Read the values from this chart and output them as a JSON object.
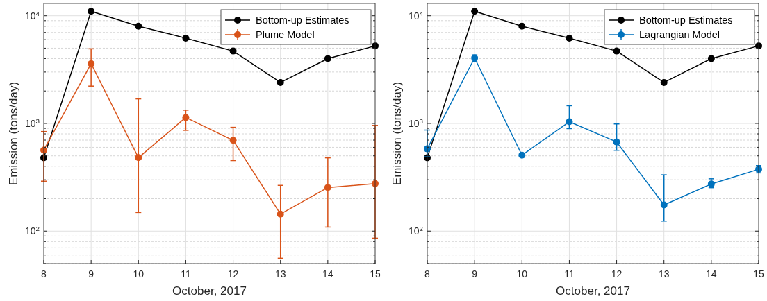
{
  "chart_data": [
    {
      "type": "line",
      "xlabel": "October, 2017",
      "ylabel": "Emission (tons/day)",
      "x": [
        8,
        9,
        10,
        11,
        12,
        13,
        14,
        15
      ],
      "xlim": [
        8,
        15
      ],
      "xticks": [
        8,
        9,
        10,
        11,
        12,
        13,
        14,
        15
      ],
      "ylim": [
        50,
        13000
      ],
      "log": true,
      "grid": true,
      "legend": "top right",
      "marker": "circle",
      "line_style": "solid",
      "yticks": [
        {
          "value": 50,
          "label": null
        },
        {
          "value": 60,
          "label": null
        },
        {
          "value": 70,
          "label": null
        },
        {
          "value": 80,
          "label": null
        },
        {
          "value": 90,
          "label": null
        },
        {
          "value": 100,
          "label": "10$^{2}$"
        },
        {
          "value": 200,
          "label": null
        },
        {
          "value": 300,
          "label": null
        },
        {
          "value": 400,
          "label": null
        },
        {
          "value": 500,
          "label": null
        },
        {
          "value": 600,
          "label": null
        },
        {
          "value": 700,
          "label": null
        },
        {
          "value": 800,
          "label": null
        },
        {
          "value": 900,
          "label": null
        },
        {
          "value": 1000,
          "label": "10$^{3}$"
        },
        {
          "value": 2000,
          "label": null
        },
        {
          "value": 3000,
          "label": null
        },
        {
          "value": 4000,
          "label": null
        },
        {
          "value": 5000,
          "label": null
        },
        {
          "value": 6000,
          "label": null
        },
        {
          "value": 7000,
          "label": null
        },
        {
          "value": 8000,
          "label": null
        },
        {
          "value": 9000,
          "label": null
        },
        {
          "value": 10000,
          "label": "10$^{4}$"
        }
      ],
      "series": [
        {
          "name": "Bottom-up Estimates",
          "color": "#000000",
          "values": [
            480,
            11000,
            8000,
            6200,
            4700,
            2400,
            4000,
            5250
          ]
        },
        {
          "name": "Plume Model",
          "color": "#d95319",
          "values": [
            565,
            3590,
            481,
            1135,
            697,
            144,
            254,
            276
          ],
          "errors": [
            [
              291,
              841
            ],
            [
              2220,
              4930
            ],
            [
              149,
              1690
            ],
            [
              863,
              1327
            ],
            [
              452,
              920
            ],
            [
              56,
              266
            ],
            [
              109,
              479
            ],
            [
              86,
              959
            ]
          ]
        }
      ]
    },
    {
      "type": "line",
      "xlabel": "October, 2017",
      "ylabel": "Emission (tons/day)",
      "x": [
        8,
        9,
        10,
        11,
        12,
        13,
        14,
        15
      ],
      "xlim": [
        8,
        15
      ],
      "xticks": [
        8,
        9,
        10,
        11,
        12,
        13,
        14,
        15
      ],
      "ylim": [
        50,
        13000
      ],
      "log": true,
      "grid": true,
      "legend": "top right",
      "marker": "circle",
      "line_style": "solid",
      "yticks": [
        {
          "value": 50,
          "label": null
        },
        {
          "value": 60,
          "label": null
        },
        {
          "value": 70,
          "label": null
        },
        {
          "value": 80,
          "label": null
        },
        {
          "value": 90,
          "label": null
        },
        {
          "value": 100,
          "label": "10$^{2}$"
        },
        {
          "value": 200,
          "label": null
        },
        {
          "value": 300,
          "label": null
        },
        {
          "value": 400,
          "label": null
        },
        {
          "value": 500,
          "label": null
        },
        {
          "value": 600,
          "label": null
        },
        {
          "value": 700,
          "label": null
        },
        {
          "value": 800,
          "label": null
        },
        {
          "value": 900,
          "label": null
        },
        {
          "value": 1000,
          "label": "10$^{3}$"
        },
        {
          "value": 2000,
          "label": null
        },
        {
          "value": 3000,
          "label": null
        },
        {
          "value": 4000,
          "label": null
        },
        {
          "value": 5000,
          "label": null
        },
        {
          "value": 6000,
          "label": null
        },
        {
          "value": 7000,
          "label": null
        },
        {
          "value": 8000,
          "label": null
        },
        {
          "value": 9000,
          "label": null
        },
        {
          "value": 10000,
          "label": "10$^{4}$"
        }
      ],
      "series": [
        {
          "name": "Bottom-up Estimates",
          "color": "#000000",
          "values": [
            480,
            11000,
            8000,
            6200,
            4700,
            2400,
            4000,
            5250
          ]
        },
        {
          "name": "Lagrangian Model",
          "color": "#0072bd",
          "values": [
            581,
            4060,
            507,
            1037,
            673,
            175,
            274,
            375
          ],
          "errors": [
            [
              490,
              868
            ],
            [
              3770,
              4330
            ],
            null,
            [
              895,
              1460
            ],
            [
              563,
              989
            ],
            [
              124,
              333
            ],
            [
              253,
              306
            ],
            [
              347,
              406
            ]
          ]
        }
      ]
    }
  ]
}
